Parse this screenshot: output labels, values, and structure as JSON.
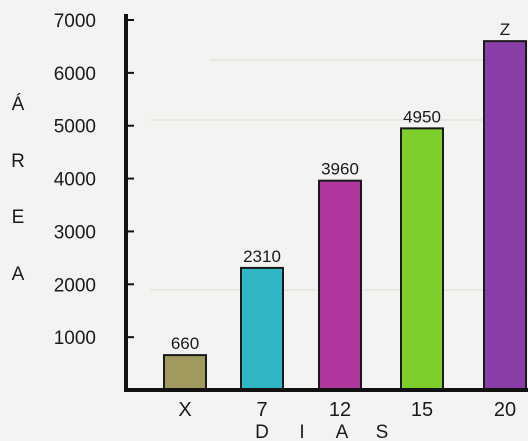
{
  "chart_data": {
    "type": "bar",
    "categories": [
      "X",
      "7",
      "12",
      "15",
      "20"
    ],
    "values": [
      660,
      2310,
      3960,
      4950,
      6600
    ],
    "data_labels": [
      "660",
      "2310",
      "3960",
      "4950",
      "Z"
    ],
    "ylabel_letters": [
      "Á",
      "R",
      "E",
      "A"
    ],
    "xlabel_letters": [
      "D",
      "I",
      "A",
      "S"
    ],
    "yticks": [
      1000,
      2000,
      3000,
      4000,
      5000,
      6000,
      7000
    ],
    "ylim": [
      0,
      7000
    ],
    "grid": false,
    "bar_colors": [
      "#a09a5e",
      "#2fb6c4",
      "#b0359c",
      "#7fcf2c",
      "#8a3fa8"
    ],
    "axis_color": "#111111"
  }
}
